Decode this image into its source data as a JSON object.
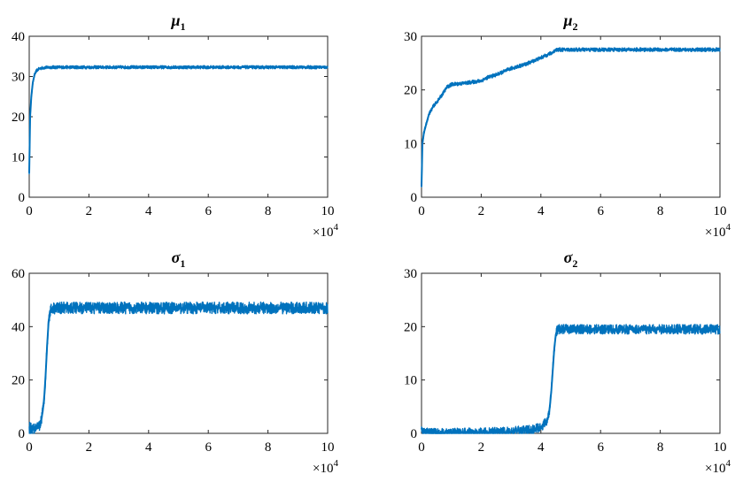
{
  "figure": {
    "line_color": "#0072BD",
    "axis_color": "#262626",
    "x_multiplier_label": "×10",
    "x_multiplier_exponent": "4"
  },
  "chart_data": [
    {
      "type": "line",
      "title": "μ",
      "title_subscript": "1",
      "xlim": [
        0,
        100000
      ],
      "ylim": [
        0,
        40
      ],
      "xticks": [
        0,
        20000,
        40000,
        60000,
        80000,
        100000
      ],
      "xtick_labels": [
        "0",
        "2",
        "4",
        "6",
        "8",
        "10"
      ],
      "yticks": [
        0,
        10,
        20,
        30,
        40
      ],
      "ytick_labels": [
        "0",
        "10",
        "20",
        "30",
        "40"
      ],
      "series": [
        {
          "x": [
            0,
            300,
            700,
            1200,
            1800,
            2500,
            3500,
            5000,
            7000,
            10000,
            20000,
            30000,
            40000,
            50000,
            60000,
            70000,
            80000,
            90000,
            100000
          ],
          "values": [
            6,
            20,
            25,
            28.5,
            30.5,
            31.5,
            32,
            32.2,
            32.3,
            32.3,
            32.3,
            32.3,
            32.3,
            32.3,
            32.3,
            32.3,
            32.3,
            32.3,
            32.3
          ],
          "noise": 0.4
        }
      ]
    },
    {
      "type": "line",
      "title": "μ",
      "title_subscript": "2",
      "xlim": [
        0,
        100000
      ],
      "ylim": [
        0,
        30
      ],
      "xticks": [
        0,
        20000,
        40000,
        60000,
        80000,
        100000
      ],
      "xtick_labels": [
        "0",
        "2",
        "4",
        "6",
        "8",
        "10"
      ],
      "yticks": [
        0,
        10,
        20,
        30
      ],
      "ytick_labels": [
        "0",
        "10",
        "20",
        "30"
      ],
      "series": [
        {
          "x": [
            0,
            300,
            800,
            1500,
            2500,
            4000,
            5500,
            7000,
            8500,
            10000,
            15000,
            20000,
            22000,
            25000,
            30000,
            35000,
            40000,
            44000,
            45000,
            50000,
            60000,
            70000,
            80000,
            90000,
            100000
          ],
          "values": [
            2,
            10,
            12,
            13.5,
            15.5,
            17,
            18,
            19.2,
            20.5,
            21,
            21.3,
            21.7,
            22.3,
            22.8,
            24,
            24.8,
            26,
            27,
            27.5,
            27.5,
            27.5,
            27.5,
            27.5,
            27.5,
            27.5
          ],
          "noise": 0.35
        }
      ]
    },
    {
      "type": "line",
      "title": "σ",
      "title_subscript": "1",
      "xlim": [
        0,
        100000
      ],
      "ylim": [
        0,
        60
      ],
      "xticks": [
        0,
        20000,
        40000,
        60000,
        80000,
        100000
      ],
      "xtick_labels": [
        "0",
        "2",
        "4",
        "6",
        "8",
        "10"
      ],
      "yticks": [
        0,
        20,
        40,
        60
      ],
      "ytick_labels": [
        "0",
        "20",
        "40",
        "60"
      ],
      "series": [
        {
          "x": [
            0,
            1000,
            2000,
            3000,
            3500,
            4000,
            4500,
            5000,
            5500,
            6000,
            6500,
            7000,
            8000,
            10000,
            20000,
            40000,
            60000,
            80000,
            100000
          ],
          "values": [
            2,
            1.5,
            1.5,
            2,
            3,
            5,
            8,
            13,
            22,
            33,
            42,
            46,
            47,
            47,
            47,
            47,
            47,
            47,
            47
          ],
          "noise": 2.2
        }
      ]
    },
    {
      "type": "line",
      "title": "σ",
      "title_subscript": "2",
      "xlim": [
        0,
        100000
      ],
      "ylim": [
        0,
        30
      ],
      "xticks": [
        0,
        20000,
        40000,
        60000,
        80000,
        100000
      ],
      "xtick_labels": [
        "0",
        "2",
        "4",
        "6",
        "8",
        "10"
      ],
      "yticks": [
        0,
        10,
        20,
        30
      ],
      "ytick_labels": [
        "0",
        "10",
        "20",
        "30"
      ],
      "series": [
        {
          "x": [
            0,
            300,
            1000,
            5000,
            20000,
            30000,
            38000,
            40000,
            41500,
            42500,
            43000,
            43500,
            44000,
            44500,
            45000,
            45500,
            47000,
            60000,
            80000,
            100000
          ],
          "values": [
            1,
            0.2,
            0.1,
            0.05,
            0.15,
            0.3,
            0.8,
            1.2,
            2,
            3,
            5,
            8,
            12,
            16,
            18.5,
            19.5,
            19.5,
            19.5,
            19.5,
            19.5
          ],
          "noise": 0.9
        }
      ]
    }
  ]
}
